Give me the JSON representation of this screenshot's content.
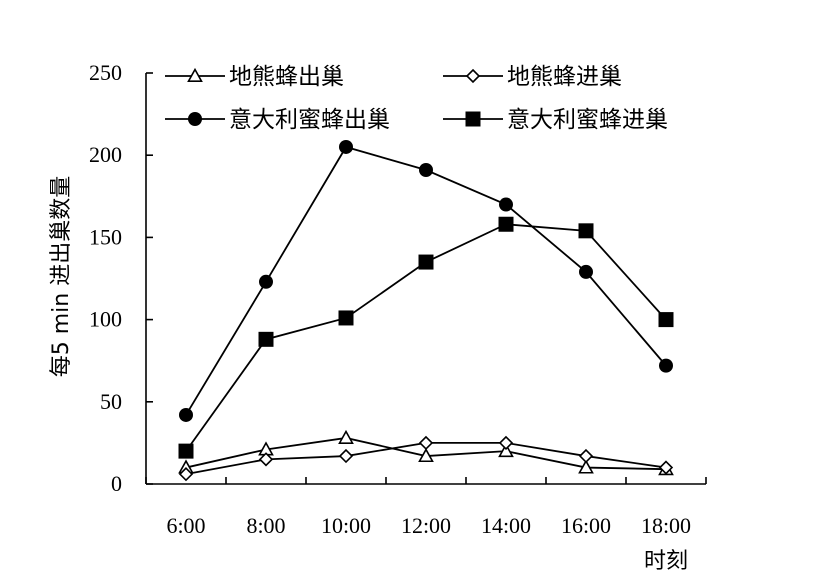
{
  "chart_data": {
    "type": "line",
    "xlabel": "时刻",
    "ylabel": "每5 min 进出巢数量",
    "categories": [
      "6:00",
      "8:00",
      "10:00",
      "12:00",
      "14:00",
      "16:00",
      "18:00"
    ],
    "ylim": [
      0,
      250
    ],
    "yticks": [
      0,
      50,
      100,
      150,
      200,
      250
    ],
    "grid": false,
    "legend_position": "top",
    "series": [
      {
        "name": "地熊蜂出巢",
        "marker": "triangle-open",
        "values": [
          10,
          21,
          28,
          17,
          20,
          10,
          9
        ]
      },
      {
        "name": "地熊蜂进巢",
        "marker": "diamond-open",
        "values": [
          6,
          15,
          17,
          25,
          25,
          17,
          10
        ]
      },
      {
        "name": "意大利蜜蜂出巢",
        "marker": "circle-filled",
        "values": [
          42,
          123,
          205,
          191,
          170,
          129,
          72
        ]
      },
      {
        "name": "意大利蜜蜂进巢",
        "marker": "square-filled",
        "values": [
          20,
          88,
          101,
          135,
          158,
          154,
          100
        ]
      }
    ],
    "colors": {
      "line": "#000000",
      "background": "#ffffff"
    }
  }
}
